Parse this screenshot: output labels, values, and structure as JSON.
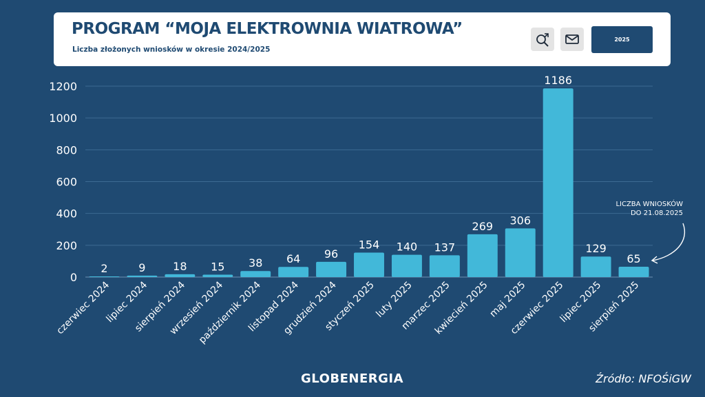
{
  "header": {
    "title": "PROGRAM “MOJA ELEKTROWNIA WIATROWA”",
    "subtitle": "Liczba złożonych wniosków w okresie 2024/2025",
    "year_button": "2025",
    "icons": [
      "search-zoom-icon",
      "mail-icon"
    ]
  },
  "annotation": {
    "line1": "LICZBA WNIOSKÓW",
    "line2": "DO 21.08.2025"
  },
  "footer": {
    "logo": "GLOBENERGIA",
    "source": "Źródło: NFOŚiGW"
  },
  "colors": {
    "background": "#1f4a72",
    "bar": "#42b8d9",
    "text": "#ffffff"
  },
  "chart_data": {
    "type": "bar",
    "title": "PROGRAM “MOJA ELEKTROWNIA WIATROWA”",
    "categories": [
      "czerwiec 2024",
      "lipiec 2024",
      "sierpień 2024",
      "wrzesień 2024",
      "październik 2024",
      "listopad 2024",
      "grudzień 2024",
      "styczeń 2025",
      "luty 2025",
      "marzec 2025",
      "kwiecień 2025",
      "maj 2025",
      "czerwiec 2025",
      "lipiec 2025",
      "sierpień 2025"
    ],
    "values": [
      2,
      9,
      18,
      15,
      38,
      64,
      96,
      154,
      140,
      137,
      269,
      306,
      1186,
      129,
      65
    ],
    "ylim": [
      0,
      1200
    ],
    "yticks": [
      0,
      200,
      400,
      600,
      800,
      1000,
      1200
    ],
    "grid": true,
    "data_labels": true
  }
}
